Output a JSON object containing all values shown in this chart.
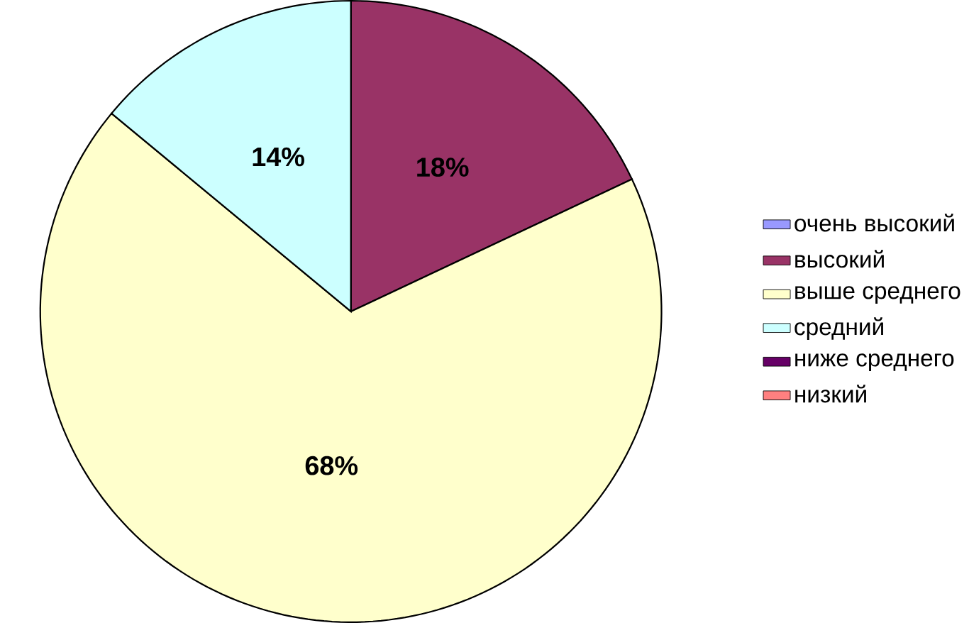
{
  "chart_data": {
    "type": "pie",
    "categories": [
      "очень высокий",
      "высокий",
      "выше среднего",
      "средний",
      "ниже среднего",
      "низкий"
    ],
    "values": [
      0,
      18,
      68,
      14,
      0,
      0
    ],
    "colors": [
      "#9999ff",
      "#993366",
      "#ffffcc",
      "#ccffff",
      "#660066",
      "#ff8080"
    ],
    "value_labels": [
      null,
      "18%",
      "68%",
      "14%",
      null,
      null
    ],
    "legend": "right"
  }
}
